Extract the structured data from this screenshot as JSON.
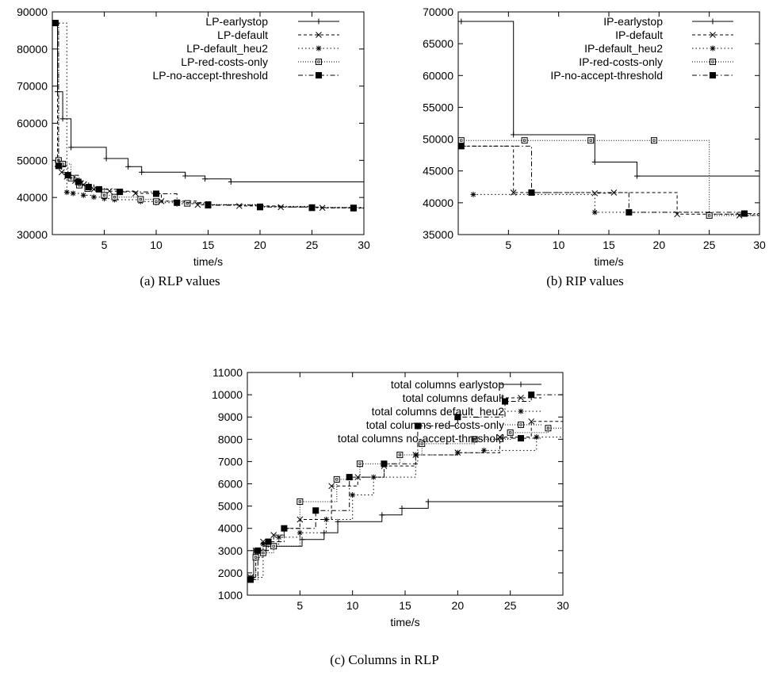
{
  "chart_data": [
    {
      "id": "a",
      "type": "line",
      "caption": "(a) RLP values",
      "xlabel": "time/s",
      "ylabel": "",
      "xlim": [
        0,
        30
      ],
      "ylim": [
        30000,
        90000
      ],
      "xticks": [
        5,
        10,
        15,
        20,
        25,
        30
      ],
      "yticks": [
        30000,
        40000,
        50000,
        60000,
        70000,
        80000,
        90000
      ],
      "grid": false,
      "legend_position": "top-right",
      "series": [
        {
          "name": "LP-earlystop",
          "dash": "",
          "marker": "plus",
          "points": [
            [
              0.3,
              87000
            ],
            [
              0.5,
              68500
            ],
            [
              1.0,
              61200
            ],
            [
              1.8,
              53500
            ],
            [
              5.2,
              50500
            ],
            [
              7.3,
              48300
            ],
            [
              8.6,
              46800
            ],
            [
              12.8,
              45800
            ],
            [
              14.7,
              45000
            ],
            [
              17.2,
              44200
            ],
            [
              30,
              44200
            ]
          ]
        },
        {
          "name": "LP-default",
          "dash": "4,3",
          "marker": "cross",
          "points": [
            [
              0.3,
              87000
            ],
            [
              0.5,
              49000
            ],
            [
              0.9,
              46800
            ],
            [
              1.4,
              45600
            ],
            [
              2.2,
              44500
            ],
            [
              3.0,
              43400
            ],
            [
              4.0,
              42200
            ],
            [
              5.5,
              41700
            ],
            [
              8.0,
              41100
            ],
            [
              10.5,
              39000
            ],
            [
              14.0,
              38000
            ],
            [
              18.0,
              37700
            ],
            [
              22.0,
              37400
            ],
            [
              26.0,
              37200
            ],
            [
              30,
              37100
            ]
          ]
        },
        {
          "name": "LP-default_heu2",
          "dash": "1.5,3",
          "marker": "asterisk",
          "points": [
            [
              0.3,
              87000
            ],
            [
              1.4,
              41400
            ],
            [
              2.0,
              41100
            ],
            [
              3.0,
              40600
            ],
            [
              4.0,
              40100
            ],
            [
              5.0,
              39700
            ],
            [
              6.0,
              39400
            ],
            [
              8.5,
              38900
            ],
            [
              10.0,
              38600
            ],
            [
              12.0,
              38300
            ],
            [
              15.0,
              38000
            ],
            [
              20.0,
              37600
            ],
            [
              25.0,
              37300
            ],
            [
              30,
              37000
            ]
          ]
        },
        {
          "name": "LP-red-costs-only",
          "dash": "1,2",
          "marker": "square-open",
          "points": [
            [
              0.3,
              87000
            ],
            [
              0.6,
              50000
            ],
            [
              1.0,
              49000
            ],
            [
              1.8,
              45200
            ],
            [
              2.6,
              43300
            ],
            [
              3.4,
              42400
            ],
            [
              5.0,
              40600
            ],
            [
              6.0,
              40100
            ],
            [
              8.5,
              39500
            ],
            [
              10.0,
              38900
            ],
            [
              13.0,
              38400
            ],
            [
              15.0,
              38100
            ],
            [
              20.0,
              37500
            ],
            [
              25.0,
              37300
            ],
            [
              29.0,
              37200
            ],
            [
              30,
              37200
            ]
          ]
        },
        {
          "name": "LP-no-accept-threshold",
          "dash": "6,3,1.5,3",
          "marker": "square-filled",
          "points": [
            [
              0.3,
              87000
            ],
            [
              0.6,
              48500
            ],
            [
              1.5,
              46000
            ],
            [
              2.5,
              44200
            ],
            [
              3.5,
              42800
            ],
            [
              4.5,
              42200
            ],
            [
              6.5,
              41500
            ],
            [
              10.0,
              41000
            ],
            [
              12.0,
              38600
            ],
            [
              15.0,
              37900
            ],
            [
              20.0,
              37400
            ],
            [
              25.0,
              37200
            ],
            [
              29.0,
              37100
            ],
            [
              30,
              37100
            ]
          ]
        }
      ]
    },
    {
      "id": "b",
      "type": "line",
      "caption": "(b) RIP values",
      "xlabel": "time/s",
      "ylabel": "",
      "xlim": [
        0,
        30
      ],
      "ylim": [
        35000,
        70000
      ],
      "xticks": [
        5,
        10,
        15,
        20,
        25,
        30
      ],
      "yticks": [
        35000,
        40000,
        45000,
        50000,
        55000,
        60000,
        65000,
        70000
      ],
      "grid": false,
      "legend_position": "top-right",
      "series": [
        {
          "name": "IP-earlystop",
          "dash": "",
          "marker": "plus",
          "points": [
            [
              0.3,
              68500
            ],
            [
              5.5,
              50700
            ],
            [
              13.6,
              46400
            ],
            [
              17.8,
              44200
            ],
            [
              30,
              44200
            ]
          ]
        },
        {
          "name": "IP-default",
          "dash": "4,3",
          "marker": "cross",
          "points": [
            [
              0.3,
              48900
            ],
            [
              5.5,
              41600
            ],
            [
              13.6,
              41500
            ],
            [
              15.5,
              41600
            ],
            [
              21.8,
              38200
            ],
            [
              28.0,
              38000
            ],
            [
              30,
              38000
            ]
          ]
        },
        {
          "name": "IP-default_heu2",
          "dash": "1.5,3",
          "marker": "asterisk",
          "points": [
            [
              1.5,
              41300
            ],
            [
              13.6,
              38500
            ],
            [
              25.0,
              38200
            ],
            [
              30,
              37900
            ]
          ]
        },
        {
          "name": "IP-red-costs-only",
          "dash": "1,2",
          "marker": "square-open",
          "points": [
            [
              0.3,
              49800
            ],
            [
              6.6,
              49800
            ],
            [
              13.2,
              49800
            ],
            [
              19.5,
              49800
            ],
            [
              25.0,
              38000
            ],
            [
              30,
              38000
            ]
          ]
        },
        {
          "name": "IP-no-accept-threshold",
          "dash": "6,3,1.5,3",
          "marker": "square-filled",
          "points": [
            [
              0.3,
              48900
            ],
            [
              7.3,
              41600
            ],
            [
              17.0,
              38500
            ],
            [
              28.5,
              38300
            ],
            [
              30,
              38300
            ]
          ]
        }
      ]
    },
    {
      "id": "c",
      "type": "line",
      "caption": "(c) Columns in RLP",
      "xlabel": "time/s",
      "ylabel": "",
      "xlim": [
        0,
        30
      ],
      "ylim": [
        1000,
        11000
      ],
      "xticks": [
        5,
        10,
        15,
        20,
        25,
        30
      ],
      "yticks": [
        1000,
        2000,
        3000,
        4000,
        5000,
        6000,
        7000,
        8000,
        9000,
        10000,
        11000
      ],
      "grid": false,
      "legend_position": "top-right",
      "series": [
        {
          "name": "total columns earlystop",
          "dash": "",
          "marker": "plus",
          "points": [
            [
              0.3,
              1700
            ],
            [
              0.6,
              3000
            ],
            [
              1.8,
              3200
            ],
            [
              5.2,
              3500
            ],
            [
              7.3,
              3800
            ],
            [
              8.6,
              4300
            ],
            [
              12.8,
              4600
            ],
            [
              14.7,
              4900
            ],
            [
              17.2,
              5200
            ],
            [
              30,
              5200
            ]
          ]
        },
        {
          "name": "total columns default",
          "dash": "4,3",
          "marker": "cross",
          "points": [
            [
              0.3,
              1800
            ],
            [
              0.8,
              3000
            ],
            [
              1.5,
              3400
            ],
            [
              2.5,
              3700
            ],
            [
              3.5,
              4000
            ],
            [
              5.0,
              4400
            ],
            [
              8.0,
              5900
            ],
            [
              10.5,
              6300
            ],
            [
              13.0,
              6800
            ],
            [
              16.0,
              7300
            ],
            [
              20.0,
              7400
            ],
            [
              24.0,
              8100
            ],
            [
              27.0,
              8800
            ],
            [
              30,
              9000
            ]
          ]
        },
        {
          "name": "total columns default_heu2",
          "dash": "1.5,3",
          "marker": "asterisk",
          "points": [
            [
              0.3,
              1800
            ],
            [
              1.5,
              3300
            ],
            [
              3.0,
              3600
            ],
            [
              5.0,
              3800
            ],
            [
              7.5,
              4400
            ],
            [
              10.0,
              5500
            ],
            [
              12.0,
              6300
            ],
            [
              16.0,
              7300
            ],
            [
              20.0,
              7400
            ],
            [
              22.5,
              7500
            ],
            [
              27.5,
              8100
            ],
            [
              30,
              8100
            ]
          ]
        },
        {
          "name": "total columns red-costs-only",
          "dash": "1,2",
          "marker": "square-open",
          "points": [
            [
              0.3,
              1700
            ],
            [
              0.8,
              2700
            ],
            [
              1.5,
              2900
            ],
            [
              2.5,
              3200
            ],
            [
              5.0,
              5200
            ],
            [
              8.5,
              6200
            ],
            [
              10.7,
              6900
            ],
            [
              14.5,
              7300
            ],
            [
              16.6,
              7800
            ],
            [
              21.6,
              8000
            ],
            [
              25.0,
              8300
            ],
            [
              28.6,
              8500
            ],
            [
              30,
              8500
            ]
          ]
        },
        {
          "name": "total columns no-accept-threshold",
          "dash": "6,3,1.5,3",
          "marker": "square-filled",
          "points": [
            [
              0.3,
              1700
            ],
            [
              1.0,
              3000
            ],
            [
              2.0,
              3400
            ],
            [
              3.5,
              4000
            ],
            [
              6.5,
              4800
            ],
            [
              9.7,
              6300
            ],
            [
              13.0,
              6900
            ],
            [
              16.2,
              8600
            ],
            [
              20.0,
              9000
            ],
            [
              24.5,
              9700
            ],
            [
              27.0,
              10000
            ],
            [
              30,
              10000
            ]
          ]
        }
      ]
    }
  ]
}
